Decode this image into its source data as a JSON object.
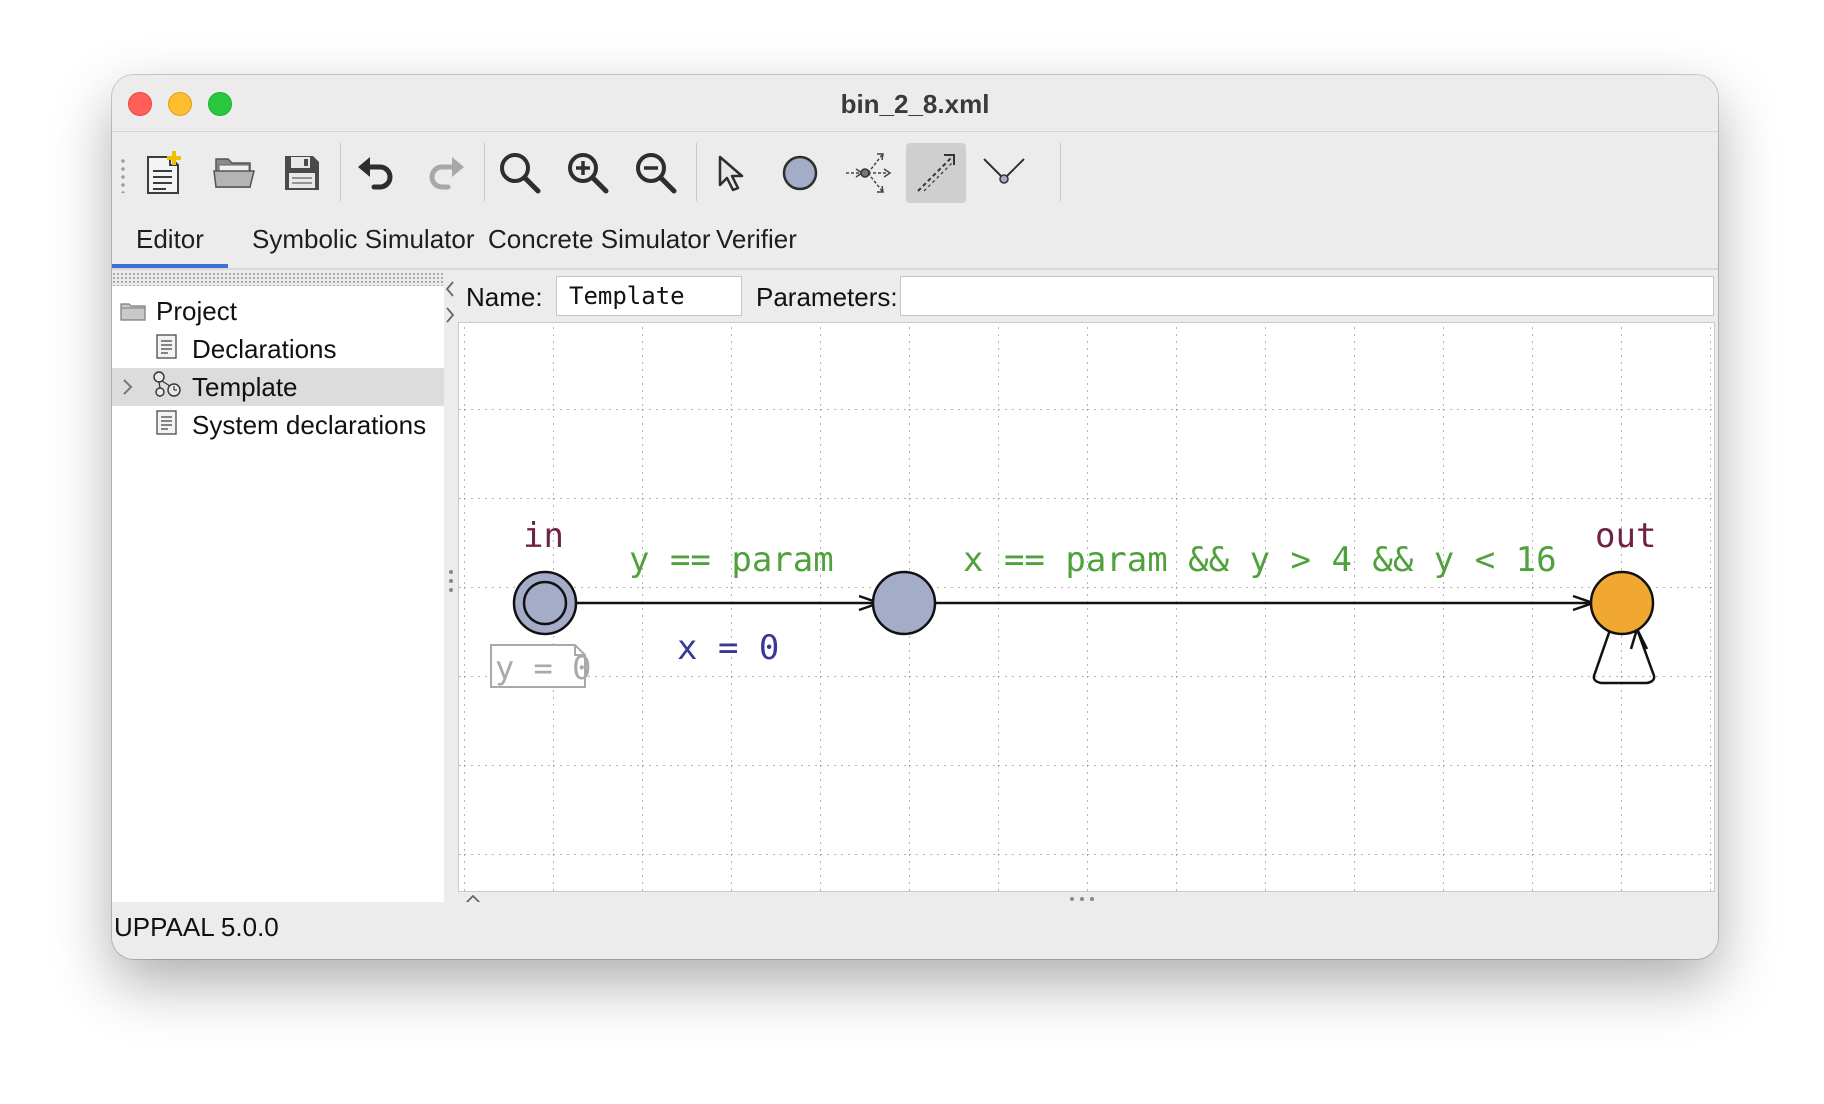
{
  "window": {
    "title": "bin_2_8.xml"
  },
  "toolbar": {
    "buttons": [
      {
        "name": "new-document",
        "icon": "new-document-icon"
      },
      {
        "name": "open",
        "icon": "open-folder-icon"
      },
      {
        "name": "save",
        "icon": "save-disk-icon"
      },
      {
        "name": "undo",
        "icon": "undo-arrow-icon"
      },
      {
        "name": "redo",
        "icon": "redo-arrow-icon"
      },
      {
        "name": "zoom-fit",
        "icon": "magnifier-icon"
      },
      {
        "name": "zoom-in",
        "icon": "zoom-in-icon"
      },
      {
        "name": "zoom-out",
        "icon": "zoom-out-icon"
      },
      {
        "name": "select-tool",
        "icon": "pointer-icon"
      },
      {
        "name": "add-location",
        "icon": "location-circle-icon"
      },
      {
        "name": "add-branch",
        "icon": "branch-point-icon"
      },
      {
        "name": "add-edge",
        "icon": "edge-arrow-icon",
        "active": true
      },
      {
        "name": "add-nail",
        "icon": "nail-icon"
      }
    ]
  },
  "tabs": [
    "Editor",
    "Symbolic Simulator",
    "Concrete Simulator",
    "Verifier"
  ],
  "active_tab": "Editor",
  "project_tree": {
    "root": "Project",
    "items": [
      {
        "label": "Declarations",
        "icon": "document-icon"
      },
      {
        "label": "Template",
        "icon": "template-icon",
        "selected": true,
        "expandable": true
      },
      {
        "label": "System declarations",
        "icon": "document-icon"
      }
    ]
  },
  "editor": {
    "name_label": "Name:",
    "name_value": "Template",
    "parameters_label": "Parameters:",
    "parameters_value": ""
  },
  "automaton": {
    "locations": {
      "in": {
        "name": "in",
        "initial": true,
        "invariant": "y = 0"
      },
      "middle": {
        "name": ""
      },
      "out": {
        "name": "out",
        "color": "#f0a830"
      }
    },
    "edges": [
      {
        "guard": "y == param",
        "update": "x = 0"
      },
      {
        "guard": "x == param && y > 4 && y < 16"
      }
    ],
    "colors": {
      "location_fill": "#a5acc8",
      "location_name": "#6e2346",
      "guard": "#4fa13c",
      "update": "#3a3796",
      "invariant": "#a9a9a9"
    }
  },
  "status": {
    "text": "UPPAAL 5.0.0"
  }
}
